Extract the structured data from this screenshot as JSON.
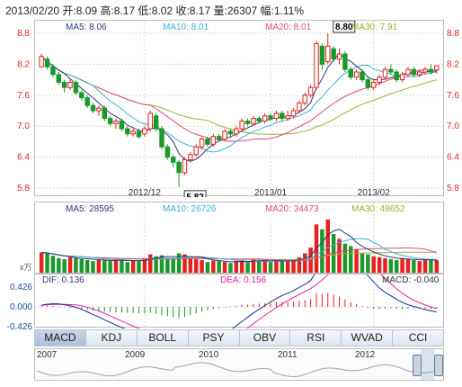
{
  "header": {
    "text": "2013/02/20 开:8.09 高:8.17 低:8.02 收:8.17 量:26307 幅:1.11%"
  },
  "colors": {
    "up": "#e8201e",
    "down": "#1a9a2a",
    "ma5": "#2a3a7a",
    "ma10": "#38b0d8",
    "ma20": "#e0487a",
    "ma30": "#a0b030",
    "axis": "#e8201e",
    "grid": "#d8d8d8"
  },
  "price_panel": {
    "ma_labels": [
      {
        "text": "MA5: 8.06",
        "color": "#2a3a7a"
      },
      {
        "text": "MA10: 8.01",
        "color": "#38b0d8"
      },
      {
        "text": "MA20: 8.01",
        "color": "#e0487a"
      },
      {
        "text": "MA30: 7.91",
        "color": "#a0b030"
      }
    ],
    "max_label": "8.80",
    "min_label": "5.82",
    "x_labels": [
      "2012/12",
      "2013/01",
      "2013/02"
    ]
  },
  "volume_panel": {
    "ma_labels": [
      {
        "text": "MA5: 28595",
        "color": "#2a3a7a"
      },
      {
        "text": "MA10: 26726",
        "color": "#38b0d8"
      },
      {
        "text": "MA20: 34473",
        "color": "#e0487a"
      },
      {
        "text": "MA30: 48652",
        "color": "#a0b030"
      }
    ],
    "unit": "x万"
  },
  "macd_panel": {
    "dif_label": "DIF: 0.136",
    "dea_label": "DEA: 0.156",
    "macd_label": "MACD: -0.040"
  },
  "tabs": [
    "MACD",
    "KDJ",
    "BOLL",
    "PSY",
    "OBV",
    "RSI",
    "WVAD",
    "CCI"
  ],
  "navigator": {
    "years": [
      "2007",
      "2009",
      "2010",
      "2011",
      "2012"
    ]
  },
  "chart_data": {
    "type": "candlestick",
    "title": "2013/02/20 开:8.09 高:8.17 低:8.02 收:8.17 量:26307 幅:1.11%",
    "y_ticks": [
      "8.8",
      "8.2",
      "7.6",
      "7.0",
      "6.4",
      "5.8"
    ],
    "ylim": [
      5.8,
      8.8
    ],
    "candles": [
      [
        8.15,
        8.35,
        8.15,
        8.4
      ],
      [
        8.3,
        8.15,
        8.1,
        8.35
      ],
      [
        8.15,
        8.0,
        7.95,
        8.2
      ],
      [
        8.0,
        7.85,
        7.8,
        8.05
      ],
      [
        7.85,
        7.75,
        7.65,
        7.9
      ],
      [
        7.75,
        7.85,
        7.7,
        7.9
      ],
      [
        7.85,
        7.65,
        7.6,
        7.9
      ],
      [
        7.65,
        7.55,
        7.5,
        7.7
      ],
      [
        7.55,
        7.4,
        7.35,
        7.6
      ],
      [
        7.4,
        7.3,
        7.25,
        7.45
      ],
      [
        7.3,
        7.35,
        7.2,
        7.4
      ],
      [
        7.35,
        7.15,
        7.1,
        7.4
      ],
      [
        7.15,
        7.05,
        7.0,
        7.2
      ],
      [
        7.05,
        7.1,
        6.95,
        7.15
      ],
      [
        7.1,
        6.95,
        6.9,
        7.15
      ],
      [
        6.95,
        6.85,
        6.8,
        7.0
      ],
      [
        6.85,
        6.9,
        6.8,
        6.95
      ],
      [
        6.9,
        6.8,
        6.75,
        6.95
      ],
      [
        6.85,
        6.95,
        6.8,
        7.0
      ],
      [
        6.95,
        7.25,
        6.9,
        7.3
      ],
      [
        7.2,
        6.95,
        6.9,
        7.25
      ],
      [
        6.95,
        6.6,
        6.55,
        7.0
      ],
      [
        6.6,
        6.4,
        6.35,
        6.65
      ],
      [
        6.4,
        6.3,
        6.2,
        6.45
      ],
      [
        6.3,
        6.1,
        5.82,
        6.35
      ],
      [
        6.1,
        6.35,
        6.05,
        6.4
      ],
      [
        6.35,
        6.45,
        6.3,
        6.5
      ],
      [
        6.45,
        6.6,
        6.4,
        6.65
      ],
      [
        6.6,
        6.75,
        6.55,
        6.8
      ],
      [
        6.75,
        6.65,
        6.6,
        6.8
      ],
      [
        6.65,
        6.8,
        6.6,
        6.85
      ],
      [
        6.8,
        6.75,
        6.7,
        6.85
      ],
      [
        6.75,
        6.9,
        6.7,
        6.95
      ],
      [
        6.9,
        6.85,
        6.8,
        6.95
      ],
      [
        6.85,
        6.95,
        6.8,
        7.0
      ],
      [
        6.95,
        7.1,
        6.9,
        7.15
      ],
      [
        7.1,
        7.05,
        7.0,
        7.15
      ],
      [
        7.05,
        7.15,
        7.0,
        7.2
      ],
      [
        7.15,
        7.1,
        7.05,
        7.2
      ],
      [
        7.1,
        7.2,
        7.05,
        7.25
      ],
      [
        7.2,
        7.15,
        7.1,
        7.25
      ],
      [
        7.15,
        7.25,
        7.1,
        7.3
      ],
      [
        7.25,
        7.15,
        7.1,
        7.3
      ],
      [
        7.15,
        7.2,
        7.1,
        7.3
      ],
      [
        7.2,
        7.3,
        7.15,
        7.35
      ],
      [
        7.3,
        7.45,
        7.25,
        7.5
      ],
      [
        7.45,
        7.6,
        7.4,
        7.65
      ],
      [
        7.6,
        7.75,
        7.55,
        7.8
      ],
      [
        7.75,
        8.6,
        7.7,
        8.65
      ],
      [
        8.55,
        8.2,
        8.1,
        8.6
      ],
      [
        8.25,
        8.55,
        8.2,
        8.8
      ],
      [
        8.5,
        8.3,
        8.25,
        8.55
      ],
      [
        8.3,
        8.4,
        8.2,
        8.5
      ],
      [
        8.4,
        8.1,
        8.05,
        8.45
      ],
      [
        8.1,
        7.95,
        7.9,
        8.15
      ],
      [
        7.95,
        8.05,
        7.9,
        8.1
      ],
      [
        8.05,
        7.9,
        7.85,
        8.1
      ],
      [
        7.9,
        7.75,
        7.7,
        7.95
      ],
      [
        7.75,
        7.85,
        7.7,
        7.9
      ],
      [
        7.85,
        7.95,
        7.8,
        8.0
      ],
      [
        7.95,
        8.1,
        7.9,
        8.15
      ],
      [
        8.1,
        8.05,
        8.0,
        8.2
      ],
      [
        8.05,
        7.9,
        7.85,
        8.1
      ],
      [
        7.9,
        8.0,
        7.85,
        8.05
      ],
      [
        8.0,
        8.1,
        7.95,
        8.15
      ],
      [
        8.1,
        8.0,
        7.95,
        8.15
      ],
      [
        8.0,
        8.05,
        7.95,
        8.1
      ],
      [
        8.05,
        8.1,
        8.0,
        8.15
      ],
      [
        8.1,
        8.05,
        8.0,
        8.2
      ],
      [
        8.09,
        8.17,
        8.02,
        8.17
      ]
    ],
    "volume": [
      42,
      40,
      35,
      30,
      28,
      32,
      30,
      28,
      26,
      24,
      27,
      25,
      24,
      28,
      26,
      22,
      25,
      24,
      30,
      38,
      34,
      36,
      30,
      28,
      40,
      38,
      30,
      28,
      26,
      22,
      25,
      24,
      22,
      20,
      24,
      26,
      22,
      28,
      24,
      26,
      22,
      25,
      24,
      23,
      28,
      32,
      40,
      52,
      100,
      90,
      110,
      80,
      70,
      60,
      55,
      48,
      40,
      38,
      34,
      32,
      30,
      28,
      26,
      30,
      28,
      26,
      24,
      26,
      28,
      26
    ],
    "macd_hist": [
      0.04,
      0.03,
      0.02,
      0.01,
      -0.01,
      -0.02,
      -0.03,
      -0.05,
      -0.07,
      -0.08,
      -0.09,
      -0.1,
      -0.11,
      -0.12,
      -0.12,
      -0.13,
      -0.13,
      -0.14,
      -0.14,
      -0.13,
      -0.15,
      -0.18,
      -0.2,
      -0.22,
      -0.24,
      -0.22,
      -0.18,
      -0.14,
      -0.1,
      -0.08,
      -0.05,
      -0.03,
      -0.01,
      0.01,
      0.02,
      0.04,
      0.05,
      0.06,
      0.07,
      0.08,
      0.09,
      0.1,
      0.1,
      0.1,
      0.11,
      0.13,
      0.15,
      0.17,
      0.3,
      0.28,
      0.3,
      0.26,
      0.22,
      0.16,
      0.1,
      0.06,
      0.02,
      -0.02,
      -0.04,
      -0.05,
      -0.04,
      -0.03,
      -0.04,
      -0.05,
      -0.04,
      -0.03,
      -0.04,
      -0.04,
      -0.04,
      -0.04
    ],
    "macd_ylim": [
      -0.426,
      0.426
    ],
    "macd_y_ticks": [
      "0.426",
      "0.000",
      "-0.426"
    ]
  }
}
